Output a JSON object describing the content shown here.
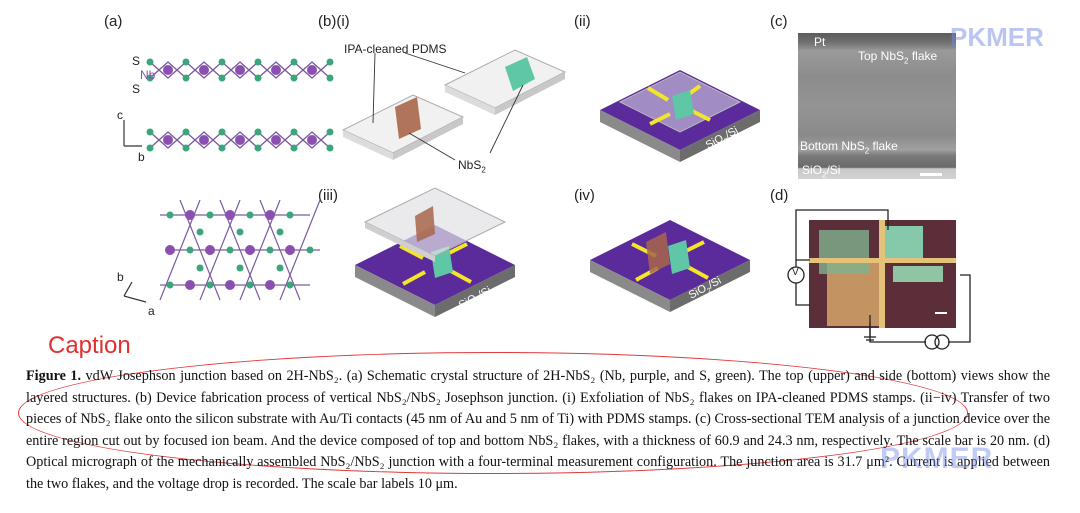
{
  "figure": {
    "labels": {
      "a": "(a)",
      "b_i": "(b)(i)",
      "ii": "(ii)",
      "c": "(c)",
      "iii": "(iii)",
      "iv": "(iv)",
      "d": "(d)"
    },
    "crystal": {
      "s": "S",
      "nb": "Nb",
      "axis_c": "c",
      "axis_b": "b",
      "axis_b2": "b",
      "axis_a": "a"
    },
    "fabrication": {
      "pdms_label": "IPA-cleaned PDMS",
      "nbs2_label": "NbS",
      "nbs2_sub": "2",
      "substrate": "SiO",
      "substrate_sub": "2",
      "substrate_rest": "/Si"
    },
    "tem": {
      "pt": "Pt",
      "top_flake": "Top NbS",
      "top_sub": "2",
      "top_rest": " flake",
      "bottom_flake": "Bottom NbS",
      "bottom_sub": "2",
      "bottom_rest": " flake",
      "substrate": "SiO",
      "substrate_sub": "2",
      "substrate_rest": "/Si"
    },
    "circuit": {
      "voltmeter": "V"
    },
    "colors": {
      "nb": "#8a4fb0",
      "s": "#3aa77a",
      "substrate": "#5b2a9b",
      "contact": "#f2e52a",
      "flake_top": "#a8664a",
      "flake_bottom": "#5fc6a6"
    }
  },
  "caption_word": "Caption",
  "caption": {
    "figure_label": "Figure 1.",
    "text": " vdW Josephson junction based on 2H-NbS₂. (a) Schematic crystal structure of 2H-NbS₂ (Nb, purple, and S, green). The top (upper) and side (bottom) views show the layered structures. (b) Device fabrication process of vertical NbS₂/NbS₂ Josephson junction. (i) Exfoliation of NbS₂ flakes on IPA-cleaned PDMS stamps. (ii−iv) Transfer of two pieces of NbS₂ flake onto the silicon substrate with Au/Ti contacts (45 nm of Au and 5 nm of Ti) with PDMS stamps. (c) Cross-sectional TEM analysis of a junction device over the entire region cut out by focused ion beam. And the device composed of top and bottom NbS₂ flakes, with a thickness of 60.9 and 24.3 nm, respectively. The scale bar is 20 nm. (d) Optical micrograph of the mechanically assembled NbS₂/NbS₂ junction with a four-terminal measurement configuration. The junction area is 31.7 μm². Current is applied between the two flakes, and the voltage drop is recorded. The scale bar labels 10 μm."
  },
  "watermark": "PKMER"
}
